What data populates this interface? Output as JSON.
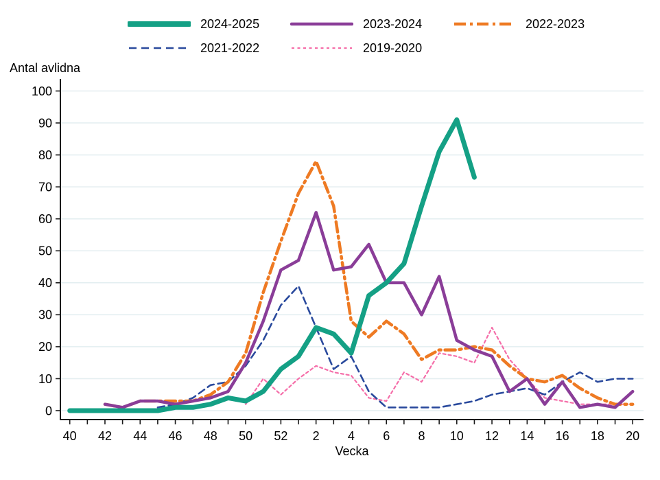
{
  "chart_data": {
    "type": "line",
    "title": "",
    "ylabel": "Antal avlidna",
    "xlabel": "Vecka",
    "x_categories": [
      "40",
      "41",
      "42",
      "43",
      "44",
      "45",
      "46",
      "47",
      "48",
      "49",
      "50",
      "51",
      "52",
      "1",
      "2",
      "3",
      "4",
      "5",
      "6",
      "7",
      "8",
      "9",
      "10",
      "11",
      "12",
      "13",
      "14",
      "15",
      "16",
      "17",
      "18",
      "19",
      "20"
    ],
    "x_tick_labels": [
      "40",
      "42",
      "44",
      "46",
      "48",
      "50",
      "52",
      "2",
      "4",
      "6",
      "8",
      "10",
      "12",
      "14",
      "16",
      "18",
      "20"
    ],
    "ylim": [
      0,
      100
    ],
    "ytick_step": 10,
    "grid": true,
    "legend_position": "top",
    "axis_color": "#1a1a1a",
    "grid_color": "#e3eef0",
    "series": [
      {
        "name": "2024-2025",
        "color": "#14A085",
        "line_style": "solid-thick",
        "values": [
          0,
          0,
          0,
          0,
          0,
          0,
          1,
          1,
          2,
          4,
          3,
          6,
          13,
          17,
          26,
          24,
          18,
          36,
          40,
          46,
          64,
          81,
          91,
          73,
          null,
          null,
          null,
          null,
          null,
          null,
          null,
          null,
          null
        ]
      },
      {
        "name": "2023-2024",
        "color": "#8A3D98",
        "line_style": "solid",
        "values": [
          null,
          null,
          2,
          1,
          3,
          3,
          2,
          3,
          4,
          6,
          15,
          28,
          44,
          47,
          62,
          44,
          45,
          52,
          40,
          40,
          30,
          42,
          22,
          19,
          17,
          6,
          10,
          2,
          9,
          1,
          2,
          1,
          6
        ]
      },
      {
        "name": "2022-2023",
        "color": "#EE7A23",
        "line_style": "dashdot",
        "values": [
          null,
          null,
          2,
          1,
          3,
          3,
          3,
          3,
          5,
          9,
          18,
          37,
          53,
          68,
          78,
          64,
          28,
          23,
          28,
          24,
          16,
          19,
          19,
          20,
          19,
          14,
          10,
          9,
          11,
          7,
          4,
          2,
          2
        ]
      },
      {
        "name": "2021-2022",
        "color": "#2A4A9D",
        "line_style": "dashed",
        "values": [
          null,
          null,
          null,
          null,
          null,
          1,
          2,
          4,
          8,
          9,
          14,
          22,
          33,
          39,
          26,
          13,
          17,
          6,
          1,
          1,
          1,
          1,
          2,
          3,
          5,
          6,
          7,
          5,
          9,
          12,
          9,
          10,
          10
        ]
      },
      {
        "name": "2019-2020",
        "color": "#F56EA9",
        "line_style": "dotted",
        "values": [
          null,
          null,
          null,
          null,
          null,
          null,
          null,
          null,
          null,
          null,
          2,
          10,
          5,
          10,
          14,
          12,
          11,
          4,
          3,
          12,
          9,
          18,
          17,
          15,
          26,
          16,
          10,
          4,
          3,
          2,
          2,
          2,
          2
        ]
      }
    ]
  }
}
